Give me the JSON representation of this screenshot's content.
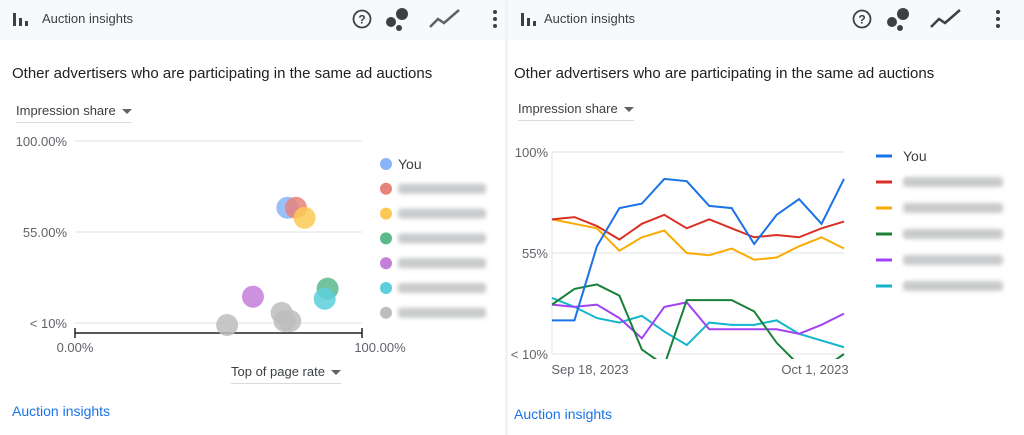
{
  "panels": [
    {
      "header": {
        "title": "Auction insights"
      },
      "subtitle": "Other advertisers who are participating in the same ad auctions",
      "y_selector": "Impression share",
      "x_selector": "Top of page rate",
      "footer_link": "Auction insights"
    },
    {
      "header": {
        "title": "Auction insights"
      },
      "subtitle": "Other advertisers who are participating in the same ad auctions",
      "y_selector": "Impression share",
      "footer_link": "Auction insights"
    }
  ],
  "icons": [
    "bar-chart-icon",
    "help-icon",
    "bubble-chart-icon",
    "line-chart-icon",
    "more-vert-icon"
  ],
  "chart_data": [
    {
      "type": "scatter",
      "x_ticks": [
        "0.00%",
        "100.00%"
      ],
      "y_ticks": [
        "100.00%",
        "55.00%",
        "< 10%"
      ],
      "xlim": [
        0,
        100
      ],
      "ylim": [
        10,
        100
      ],
      "legend_position": "right",
      "series": [
        {
          "name": "You",
          "color": "#8ab4f8",
          "points": [
            [
              74,
              67
            ]
          ]
        },
        {
          "name": "",
          "color": "#e8837b",
          "points": [
            [
              77,
              67
            ]
          ]
        },
        {
          "name": "",
          "color": "#fbca56",
          "points": [
            [
              80,
              62
            ]
          ]
        },
        {
          "name": "",
          "color": "#5bb98b",
          "points": [
            [
              88,
              27
            ]
          ]
        },
        {
          "name": "",
          "color": "#c47fd9",
          "points": [
            [
              62,
              23
            ]
          ]
        },
        {
          "name": "",
          "color": "#5ccfdc",
          "points": [
            [
              87,
              22
            ]
          ]
        },
        {
          "name": "",
          "color": "#bdbdbd",
          "points": [
            [
              53,
              9
            ],
            [
              72,
              15
            ],
            [
              73,
              11
            ],
            [
              75,
              11
            ]
          ]
        }
      ],
      "legend": [
        "You",
        "",
        "",
        "",
        "",
        "",
        ""
      ]
    },
    {
      "type": "line",
      "x_labels": [
        "Sep 18, 2023",
        "Oct 1, 2023"
      ],
      "y_ticks": [
        "100%",
        "55%",
        "< 10%"
      ],
      "ylim": [
        10,
        100
      ],
      "legend_position": "right",
      "series": [
        {
          "name": "You",
          "color": "#1a73e8",
          "values": [
            25,
            25,
            58,
            75,
            77,
            88,
            87,
            76,
            75,
            59,
            72,
            79,
            68,
            88
          ]
        },
        {
          "name": "",
          "color": "#d93025",
          "values": [
            70,
            71,
            67,
            61,
            68,
            72,
            66,
            70,
            66,
            62,
            63,
            62,
            66,
            69
          ]
        },
        {
          "name": "",
          "color": "#f9ab00",
          "values": [
            70,
            68,
            66,
            56,
            62,
            65,
            55,
            54,
            57,
            52,
            53,
            58,
            62,
            57
          ]
        },
        {
          "name": "",
          "color": "#188038",
          "values": [
            32,
            39,
            41,
            36,
            12,
            5,
            34,
            34,
            34,
            29,
            15,
            5,
            3,
            10
          ]
        },
        {
          "name": "",
          "color": "#a142f4",
          "values": [
            32,
            31,
            32,
            26,
            17,
            31,
            33,
            21,
            21,
            21,
            21,
            19,
            23,
            28
          ]
        },
        {
          "name": "",
          "color": "#12b5cb",
          "values": [
            35,
            31,
            26,
            24,
            27,
            20,
            14,
            24,
            23,
            23,
            25,
            19,
            16,
            13
          ]
        }
      ],
      "legend": [
        "You",
        "",
        "",
        "",
        "",
        ""
      ]
    }
  ]
}
